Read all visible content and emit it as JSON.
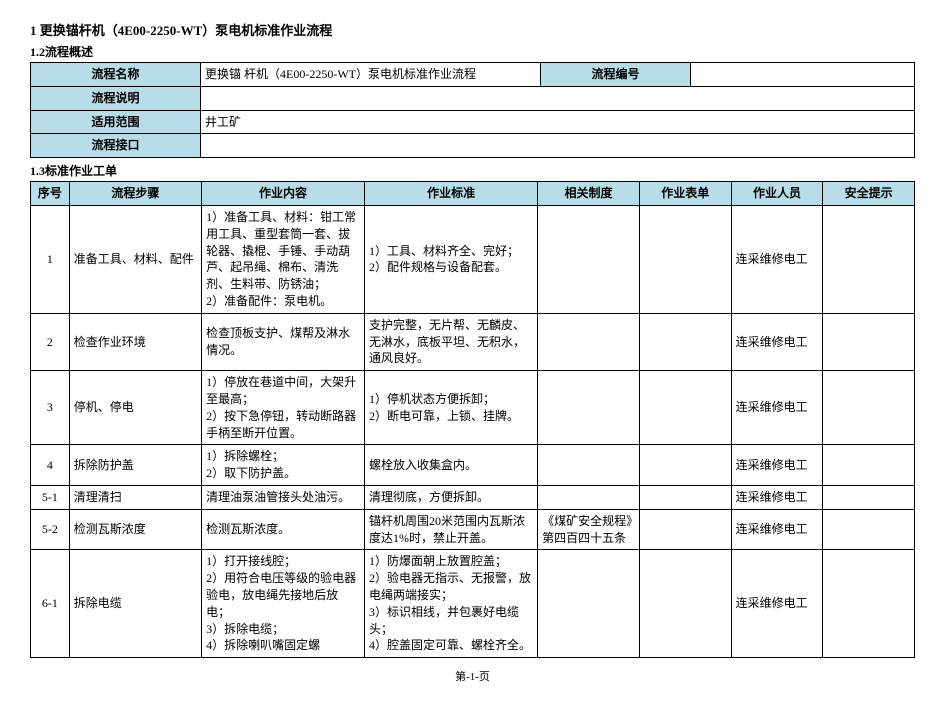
{
  "doc": {
    "main_title": "1  更换锚杆机（4E00-2250-WT）泵电机标准作业流程",
    "section_1_2": "1.2流程概述",
    "section_1_3": "1.3标准作业工单",
    "footer": "第-1-页"
  },
  "overview": {
    "labels": {
      "name": "流程名称",
      "desc": "流程说明",
      "scope": "适用范围",
      "interface": "流程接口",
      "code": "流程编号"
    },
    "values": {
      "name": "更换锚  杆机（4E00-2250-WT）泵电机标准作业流程",
      "desc": "",
      "scope": "井工矿",
      "interface": "",
      "code": ""
    }
  },
  "work": {
    "headers": {
      "seq": "序号",
      "step": "流程步骤",
      "content": "作业内容",
      "standard": "作业标准",
      "system": "相关制度",
      "form": "作业表单",
      "person": "作业人员",
      "safety": "安全提示"
    },
    "rows": [
      {
        "seq": "1",
        "step": "准备工具、材料、配件",
        "content": "1）准备工具、材料：钳工常用工具、重型套筒一套、拔轮器、撬棍、手锤、手动葫芦、起吊绳、棉布、清洗剂、生料带、防锈油；\n2）准备配件：泵电机。",
        "standard": "1）工具、材料齐全、完好；\n2）配件规格与设备配套。",
        "system": "",
        "form": "",
        "person": "连采维修电工",
        "safety": ""
      },
      {
        "seq": "2",
        "step": "检查作业环境",
        "content": "检查顶板支护、煤帮及淋水情况。",
        "standard": "支护完整，无片帮、无麟皮、无淋水，底板平坦、无积水，通风良好。",
        "system": "",
        "form": "",
        "person": "连采维修电工",
        "safety": ""
      },
      {
        "seq": "3",
        "step": "停机、停电",
        "content": "1）停放在巷道中间，大架升至最高；\n2）按下急停钮，转动断路器手柄至断开位置。",
        "standard": "1）停机状态方便拆卸；\n2）断电可靠，上锁、挂牌。",
        "system": "",
        "form": "",
        "person": "连采维修电工",
        "safety": ""
      },
      {
        "seq": "4",
        "step": "拆除防护盖",
        "content": "1）拆除螺栓；\n2）取下防护盖。",
        "standard": "螺栓放入收集盒内。",
        "system": "",
        "form": "",
        "person": "连采维修电工",
        "safety": ""
      },
      {
        "seq": "5-1",
        "step": "清理清扫",
        "content": "清理油泵油管接头处油污。",
        "standard": "清理彻底，方便拆卸。",
        "system": "",
        "form": "",
        "person": "连采维修电工",
        "safety": ""
      },
      {
        "seq": "5-2",
        "step": "检测瓦斯浓度",
        "content": "检测瓦斯浓度。",
        "standard": "锚杆机周围20米范围内瓦斯浓度达1%时，禁止开盖。",
        "system": "《煤矿安全规程》第四百四十五条",
        "form": "",
        "person": "连采维修电工",
        "safety": ""
      },
      {
        "seq": "6-1",
        "step": "拆除电缆",
        "content": "1）打开接线腔；\n2）用符合电压等级的验电器验电，放电绳先接地后放电；\n3）拆除电缆；\n4）拆除喇叭嘴固定螺",
        "standard": "1）防爆面朝上放置腔盖；\n2）验电器无指示、无报警，放电绳两端接实；\n3）标识相线，并包裹好电缆头；\n4）腔盖固定可靠、螺栓齐全。",
        "system": "",
        "form": "",
        "person": "连采维修电工",
        "safety": ""
      }
    ]
  },
  "style": {
    "header_bg": "#b7dde8",
    "border_color": "#000000",
    "font_body": 12,
    "font_title": 13
  }
}
